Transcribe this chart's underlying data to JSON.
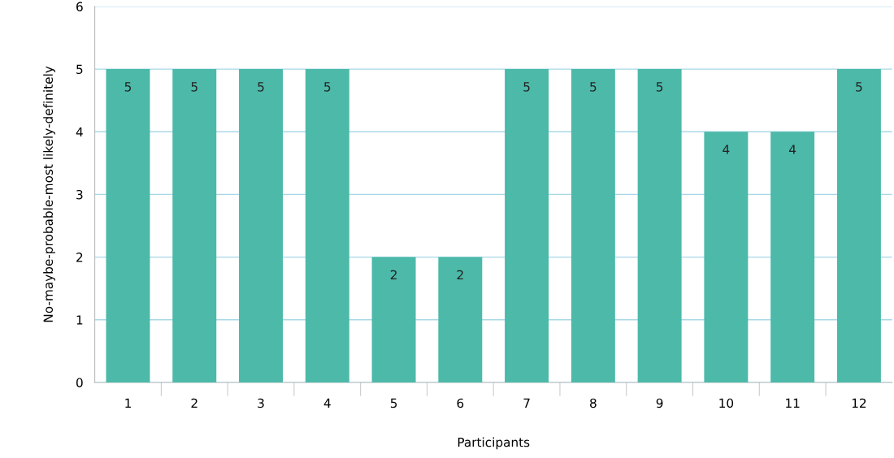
{
  "chart_data": {
    "type": "bar",
    "xlabel": "Participants",
    "ylabel": "No-maybe-probable-most likely-definitely",
    "categories": [
      "1",
      "2",
      "3",
      "4",
      "5",
      "6",
      "7",
      "8",
      "9",
      "10",
      "11",
      "12"
    ],
    "values": [
      5,
      5,
      5,
      5,
      2,
      2,
      5,
      5,
      5,
      4,
      4,
      5
    ],
    "color": "#4cb9a9",
    "ylim": [
      0,
      6
    ],
    "yticks": [
      0,
      1,
      2,
      3,
      4,
      5,
      6
    ],
    "grid": "y",
    "data_labels": true
  }
}
